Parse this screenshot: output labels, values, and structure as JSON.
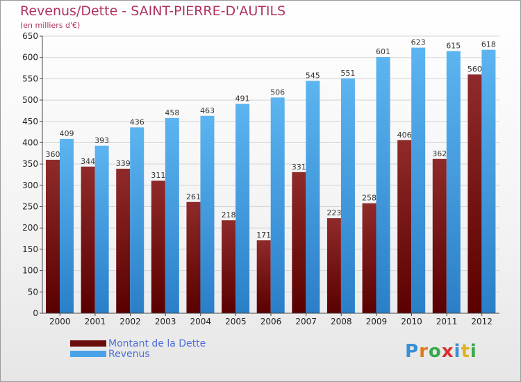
{
  "header": {
    "title": "Revenus/Dette - SAINT-PIERRE-D'AUTILS",
    "subtitle": "(en milliers d'€)"
  },
  "chart_data": {
    "type": "bar",
    "title": "Revenus/Dette - SAINT-PIERRE-D'AUTILS",
    "ylabel": "(en milliers d'€)",
    "categories": [
      "2000",
      "2001",
      "2002",
      "2003",
      "2004",
      "2005",
      "2006",
      "2007",
      "2008",
      "2009",
      "2010",
      "2011",
      "2012"
    ],
    "ylim": [
      0,
      650
    ],
    "yticks": [
      0,
      50,
      100,
      150,
      200,
      250,
      300,
      350,
      400,
      450,
      500,
      550,
      600,
      650
    ],
    "grid": true,
    "legend_position": "bottom-left",
    "series": [
      {
        "name": "Montant de la Dette",
        "color": "#8b1a1a",
        "values": [
          360,
          344,
          339,
          311,
          261,
          218,
          171,
          331,
          223,
          258,
          406,
          362,
          560
        ]
      },
      {
        "name": "Revenus",
        "color": "#4aa3e8",
        "values": [
          409,
          393,
          436,
          458,
          463,
          491,
          506,
          545,
          551,
          601,
          623,
          615,
          618
        ]
      }
    ]
  },
  "legend": {
    "items": [
      {
        "label": "Montant de la Dette",
        "color": "#6b0c0c"
      },
      {
        "label": "Revenus",
        "color": "#4aa3e8"
      }
    ]
  },
  "logo": {
    "text": "Proxiti",
    "letters": [
      "P",
      "r",
      "o",
      "x",
      "i",
      "t",
      "i"
    ],
    "colors": [
      "#3a8fd6",
      "#e07a1f",
      "#3aa84a",
      "#d9322e",
      "#3a8fd6",
      "#e0b21f",
      "#3aa84a"
    ]
  }
}
